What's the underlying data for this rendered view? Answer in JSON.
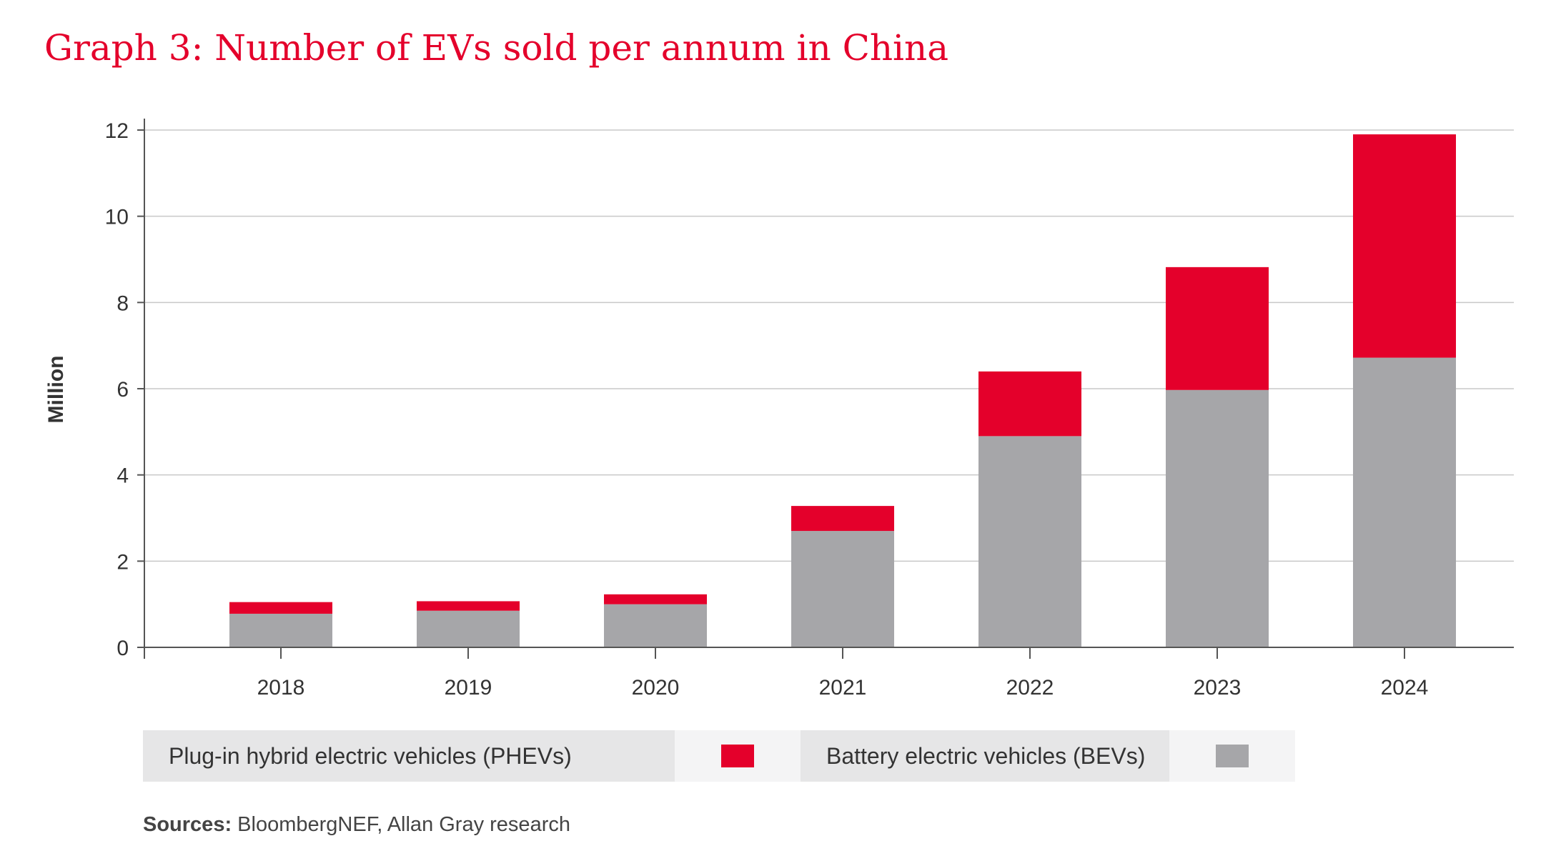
{
  "title": "Graph 3: Number of EVs sold per annum in China",
  "colors": {
    "title": "#e4002b",
    "phev": "#e4002b",
    "bev": "#a6a6a9",
    "grid": "#c8c8c8",
    "axis": "#555555",
    "legend_bg": "#e6e6e7",
    "legend_swatch_bg": "#f4f4f5"
  },
  "chart_data": {
    "type": "bar",
    "stacked": true,
    "categories": [
      "2018",
      "2019",
      "2020",
      "2021",
      "2022",
      "2023",
      "2024"
    ],
    "series": [
      {
        "name": "Battery electric vehicles (BEVs)",
        "key": "bev",
        "values": [
          0.78,
          0.85,
          1.0,
          2.7,
          4.9,
          5.97,
          6.72
        ]
      },
      {
        "name": "Plug-in hybrid electric vehicles (PHEVs)",
        "key": "phev",
        "values": [
          0.27,
          0.22,
          0.23,
          0.58,
          1.5,
          2.85,
          5.18
        ]
      }
    ],
    "ylabel": "Million",
    "xlabel": "",
    "ylim": [
      0,
      12
    ],
    "yticks": [
      0,
      2,
      4,
      6,
      8,
      10,
      12
    ],
    "grid": true,
    "legend_placement": "bottom"
  },
  "legend": {
    "phev_label": "Plug-in hybrid electric vehicles (PHEVs)",
    "bev_label": "Battery electric vehicles (BEVs)"
  },
  "sources": {
    "label": "Sources:",
    "text": " BloombergNEF, Allan Gray research"
  }
}
